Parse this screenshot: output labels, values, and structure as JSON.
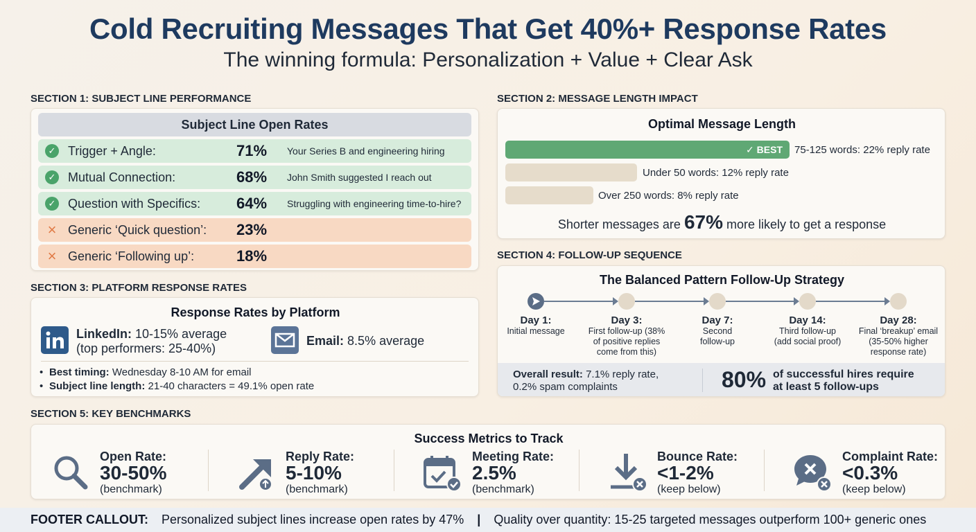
{
  "header": {
    "title": "Cold Recruiting Messages That Get 40%+ Response Rates",
    "subtitle": "The winning formula: Personalization + Value + Clear Ask"
  },
  "section1": {
    "label": "SECTION 1: SUBJECT LINE PERFORMANCE",
    "title": "Subject Line Open Rates",
    "rows": [
      {
        "status": "check",
        "label": "Trigger + Angle:",
        "pct": "71%",
        "example": "Your Series B and engineering hiring"
      },
      {
        "status": "check",
        "label": "Mutual Connection:",
        "pct": "68%",
        "example": "John Smith suggested I reach out"
      },
      {
        "status": "check",
        "label": "Question with Specifics:",
        "pct": "64%",
        "example": "Struggling with engineering time-to-hire?"
      },
      {
        "status": "cross",
        "label": "Generic ‘Quick question’:",
        "pct": "23%",
        "example": ""
      },
      {
        "status": "cross",
        "label": "Generic ‘Following up’:",
        "pct": "18%",
        "example": ""
      }
    ],
    "colors": {
      "good": "#d7ecdc",
      "bad": "#f8d9c3"
    }
  },
  "section2": {
    "label": "SECTION 2: MESSAGE LENGTH IMPACT",
    "title": "Optimal Message Length",
    "best_tag": "✓ BEST",
    "bars": [
      {
        "text": "75-125 words: 22% reply rate",
        "reply_rate": 22
      },
      {
        "text": "Under 50 words: 12% reply rate",
        "reply_rate": 12
      },
      {
        "text": "Over 250 words: 8% reply rate",
        "reply_rate": 8
      }
    ],
    "summary_pre": "Shorter messages are",
    "summary_big": "67%",
    "summary_post": "more likely to get a response"
  },
  "section3": {
    "label": "SECTION 3: PLATFORM RESPONSE RATES",
    "title": "Response Rates by Platform",
    "linkedin": {
      "name": "LinkedIn:",
      "rate": "10-15% average",
      "top": "(top performers: 25-40%)"
    },
    "email": {
      "name": "Email:",
      "rate": "8.5% average"
    },
    "bullets": [
      {
        "key": "Best timing:",
        "value": "Wednesday 8-10 AM for email"
      },
      {
        "key": "Subject line length:",
        "value": "21-40 characters = 49.1% open rate"
      }
    ]
  },
  "section4": {
    "label": "SECTION 4: FOLLOW-UP SEQUENCE",
    "title": "The Balanced Pattern Follow-Up Strategy",
    "steps": [
      {
        "day": "Day 1:",
        "desc": "Initial message"
      },
      {
        "day": "Day 3:",
        "desc": "First follow-up (38% of positive replies come from this)"
      },
      {
        "day": "Day 7:",
        "desc": "Second follow-up"
      },
      {
        "day": "Day 14:",
        "desc": "Third follow-up (add social proof)"
      },
      {
        "day": "Day 28:",
        "desc": "Final ‘breakup’ email (35-50% higher response rate)"
      }
    ],
    "overall_key": "Overall result:",
    "overall_line1": "7.1% reply rate,",
    "overall_line2": "0.2% spam complaints",
    "big_stat": "80%",
    "big_text1": "of successful hires require",
    "big_text2": "at least 5 follow-ups"
  },
  "section5": {
    "label": "SECTION 5: KEY BENCHMARKS",
    "title": "Success Metrics to Track",
    "metrics": [
      {
        "icon": "magnifier-icon",
        "label": "Open Rate:",
        "value": "30-50%",
        "note": "(benchmark)"
      },
      {
        "icon": "arrow-up-icon",
        "label": "Reply Rate:",
        "value": "5-10%",
        "note": "(benchmark)"
      },
      {
        "icon": "calendar-check-icon",
        "label": "Meeting Rate:",
        "value": "2.5%",
        "note": "(benchmark)"
      },
      {
        "icon": "download-x-icon",
        "label": "Bounce Rate:",
        "value": "<1-2%",
        "note": "(keep below)"
      },
      {
        "icon": "chat-x-icon",
        "label": "Complaint Rate:",
        "value": "<0.3%",
        "note": "(keep below)"
      }
    ]
  },
  "footer": {
    "label": "FOOTER CALLOUT:",
    "left": "Personalized subject lines increase open rates by 47%",
    "separator": "|",
    "right": "Quality over quantity: 15-25 targeted messages outperform 100+ generic ones"
  }
}
